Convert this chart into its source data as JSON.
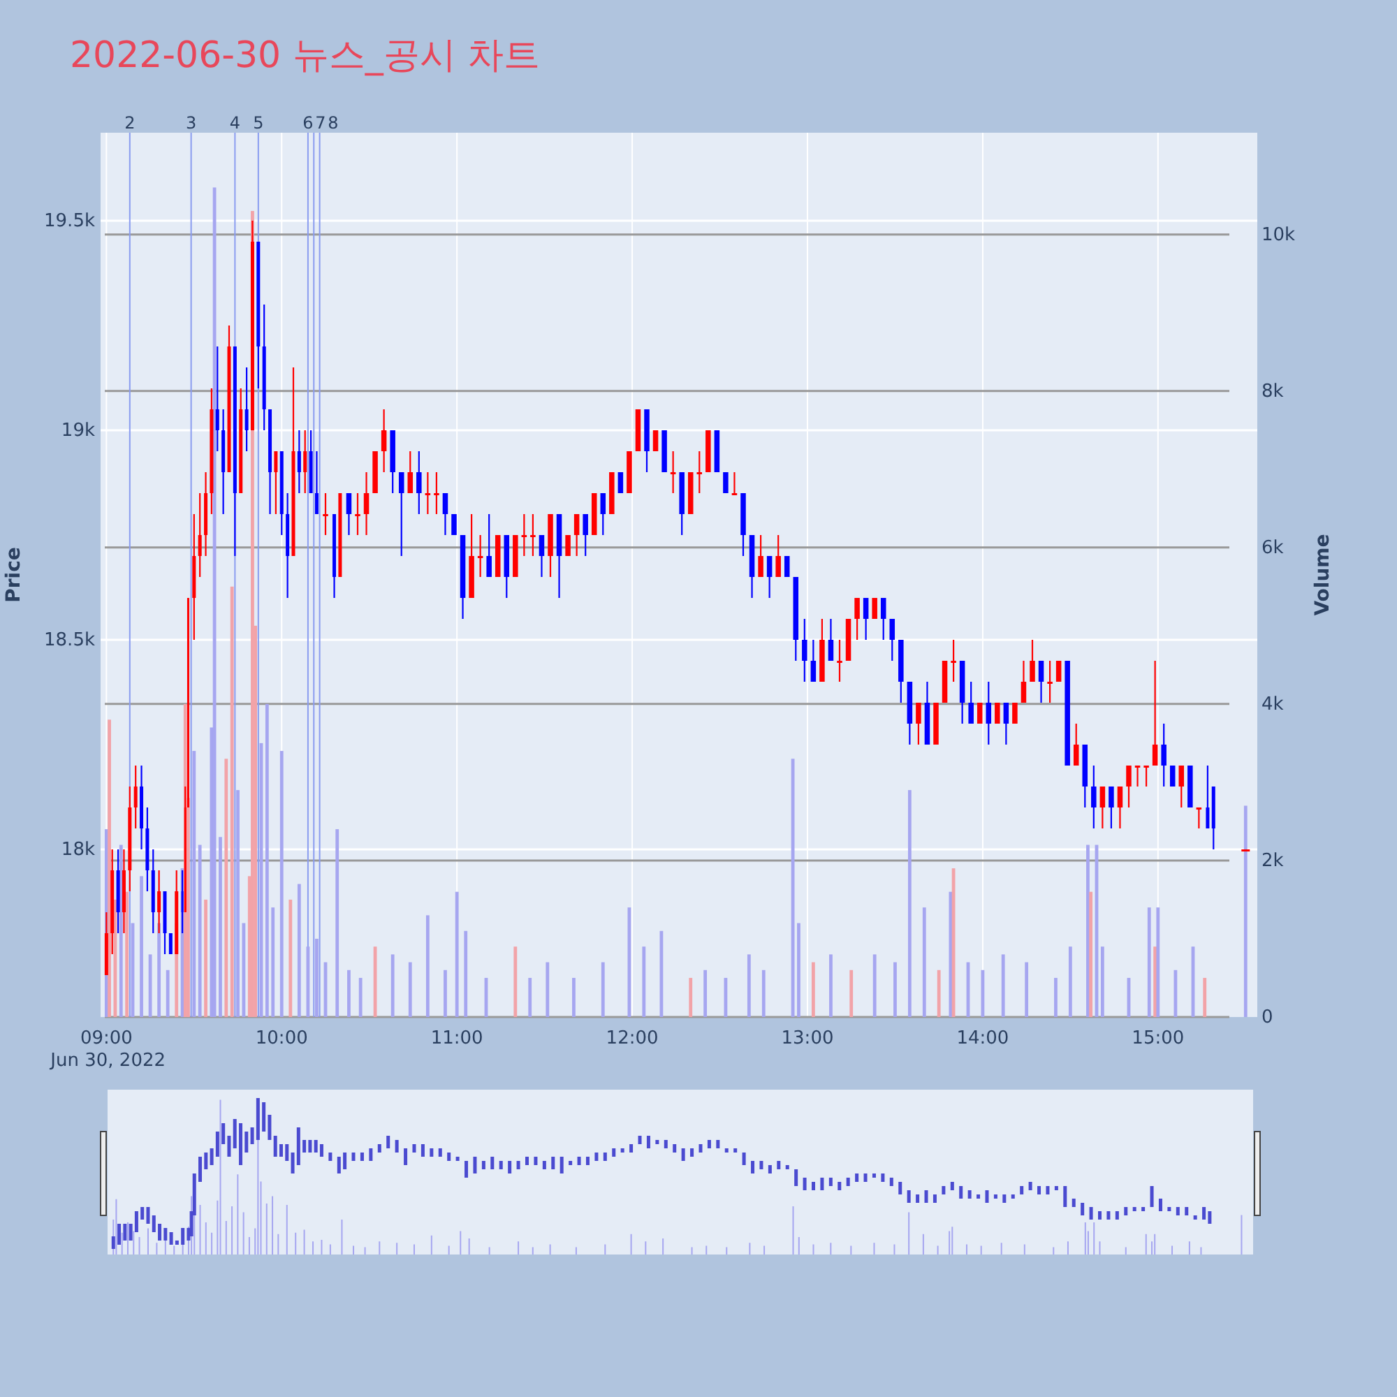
{
  "chart_data": {
    "type": "candlestick",
    "title": "2022-06-30 뉴스_공시 차트",
    "ylabel": "Price",
    "y2label": "Volume",
    "grid": true,
    "xlim": [
      "2022-06-30T08:58",
      "2022-06-30T15:34"
    ],
    "xticks": [
      {
        "value": "2022-06-30T09:00",
        "label": "09:00\nJun 30, 2022"
      },
      {
        "value": "2022-06-30T10:00",
        "label": "10:00"
      },
      {
        "value": "2022-06-30T11:00",
        "label": "11:00"
      },
      {
        "value": "2022-06-30T12:00",
        "label": "12:00"
      },
      {
        "value": "2022-06-30T13:00",
        "label": "13:00"
      },
      {
        "value": "2022-06-30T14:00",
        "label": "14:00"
      },
      {
        "value": "2022-06-30T15:00",
        "label": "15:00"
      }
    ],
    "ylim": [
      17600,
      19710
    ],
    "yticks": [
      {
        "value": 18000,
        "label": "18k"
      },
      {
        "value": 18500,
        "label": "18.5k"
      },
      {
        "value": 19000,
        "label": "19k"
      },
      {
        "value": 19500,
        "label": "19.5k"
      }
    ],
    "y2lim": [
      0,
      11300
    ],
    "y2ticks": [
      0,
      {
        "value": 2000,
        "label": "2k"
      },
      {
        "value": 4000,
        "label": "4k"
      },
      {
        "value": 6000,
        "label": "6k"
      },
      {
        "value": 8000,
        "label": "8k"
      },
      {
        "value": 10000,
        "label": "10k"
      }
    ],
    "x": [
      "2022-06-30T09:00",
      "2022-06-30T09:02",
      "2022-06-30T09:04",
      "2022-06-30T09:06",
      "2022-06-30T09:08",
      "2022-06-30T09:10",
      "2022-06-30T09:12",
      "2022-06-30T09:14",
      "2022-06-30T09:16",
      "2022-06-30T09:18",
      "2022-06-30T09:20",
      "2022-06-30T09:22",
      "2022-06-30T09:24",
      "2022-06-30T09:26",
      "2022-06-30T09:27",
      "2022-06-30T09:28",
      "2022-06-30T09:30",
      "2022-06-30T09:32",
      "2022-06-30T09:34",
      "2022-06-30T09:36",
      "2022-06-30T09:38",
      "2022-06-30T09:40",
      "2022-06-30T09:42",
      "2022-06-30T09:44",
      "2022-06-30T09:46",
      "2022-06-30T09:48",
      "2022-06-30T09:50",
      "2022-06-30T09:52",
      "2022-06-30T09:54",
      "2022-06-30T09:56",
      "2022-06-30T09:58",
      "2022-06-30T10:00",
      "2022-06-30T10:02",
      "2022-06-30T10:04",
      "2022-06-30T10:06",
      "2022-06-30T10:08",
      "2022-06-30T10:10",
      "2022-06-30T10:12",
      "2022-06-30T10:15",
      "2022-06-30T10:18",
      "2022-06-30T10:20",
      "2022-06-30T10:23",
      "2022-06-30T10:26",
      "2022-06-30T10:29",
      "2022-06-30T10:32",
      "2022-06-30T10:35",
      "2022-06-30T10:38",
      "2022-06-30T10:41",
      "2022-06-30T10:44",
      "2022-06-30T10:47",
      "2022-06-30T10:50",
      "2022-06-30T10:53",
      "2022-06-30T10:56",
      "2022-06-30T10:59",
      "2022-06-30T11:02",
      "2022-06-30T11:05",
      "2022-06-30T11:08",
      "2022-06-30T11:11",
      "2022-06-30T11:14",
      "2022-06-30T11:17",
      "2022-06-30T11:20",
      "2022-06-30T11:23",
      "2022-06-30T11:26",
      "2022-06-30T11:29",
      "2022-06-30T11:32",
      "2022-06-30T11:35",
      "2022-06-30T11:38",
      "2022-06-30T11:41",
      "2022-06-30T11:44",
      "2022-06-30T11:47",
      "2022-06-30T11:50",
      "2022-06-30T11:53",
      "2022-06-30T11:56",
      "2022-06-30T11:59",
      "2022-06-30T12:02",
      "2022-06-30T12:05",
      "2022-06-30T12:08",
      "2022-06-30T12:11",
      "2022-06-30T12:14",
      "2022-06-30T12:17",
      "2022-06-30T12:20",
      "2022-06-30T12:23",
      "2022-06-30T12:26",
      "2022-06-30T12:29",
      "2022-06-30T12:32",
      "2022-06-30T12:35",
      "2022-06-30T12:38",
      "2022-06-30T12:41",
      "2022-06-30T12:44",
      "2022-06-30T12:47",
      "2022-06-30T12:50",
      "2022-06-30T12:53",
      "2022-06-30T12:56",
      "2022-06-30T12:59",
      "2022-06-30T13:02",
      "2022-06-30T13:05",
      "2022-06-30T13:08",
      "2022-06-30T13:11",
      "2022-06-30T13:14",
      "2022-06-30T13:17",
      "2022-06-30T13:20",
      "2022-06-30T13:23",
      "2022-06-30T13:26",
      "2022-06-30T13:29",
      "2022-06-30T13:32",
      "2022-06-30T13:35",
      "2022-06-30T13:38",
      "2022-06-30T13:41",
      "2022-06-30T13:44",
      "2022-06-30T13:47",
      "2022-06-30T13:50",
      "2022-06-30T13:53",
      "2022-06-30T13:56",
      "2022-06-30T13:59",
      "2022-06-30T14:02",
      "2022-06-30T14:05",
      "2022-06-30T14:08",
      "2022-06-30T14:11",
      "2022-06-30T14:14",
      "2022-06-30T14:17",
      "2022-06-30T14:20",
      "2022-06-30T14:23",
      "2022-06-30T14:26",
      "2022-06-30T14:29",
      "2022-06-30T14:32",
      "2022-06-30T14:35",
      "2022-06-30T14:38",
      "2022-06-30T14:41",
      "2022-06-30T14:44",
      "2022-06-30T14:47",
      "2022-06-30T14:50",
      "2022-06-30T14:53",
      "2022-06-30T14:56",
      "2022-06-30T14:59",
      "2022-06-30T15:02",
      "2022-06-30T15:05",
      "2022-06-30T15:08",
      "2022-06-30T15:11",
      "2022-06-30T15:14",
      "2022-06-30T15:17",
      "2022-06-30T15:19",
      "2022-06-30T15:30"
    ],
    "ohlc": [
      [
        17700,
        17850,
        17700,
        17800
      ],
      [
        17800,
        18000,
        17750,
        17950
      ],
      [
        17950,
        18000,
        17800,
        17850
      ],
      [
        17850,
        18000,
        17800,
        17950
      ],
      [
        17950,
        18150,
        17900,
        18100
      ],
      [
        18100,
        18200,
        18050,
        18150
      ],
      [
        18150,
        18200,
        18000,
        18050
      ],
      [
        18050,
        18100,
        17900,
        17950
      ],
      [
        17950,
        18000,
        17800,
        17850
      ],
      [
        17850,
        17950,
        17800,
        17900
      ],
      [
        17900,
        17900,
        17750,
        17800
      ],
      [
        17800,
        17800,
        17750,
        17750
      ],
      [
        17750,
        17950,
        17750,
        17900
      ],
      [
        17900,
        17950,
        17800,
        17850
      ],
      [
        17850,
        18150,
        17850,
        18100
      ],
      [
        18100,
        18600,
        18100,
        18600
      ],
      [
        18600,
        18800,
        18500,
        18700
      ],
      [
        18700,
        18850,
        18650,
        18750
      ],
      [
        18750,
        18900,
        18700,
        18850
      ],
      [
        18850,
        19100,
        18800,
        19050
      ],
      [
        19050,
        19200,
        18950,
        19000
      ],
      [
        19000,
        19050,
        18800,
        18900
      ],
      [
        18900,
        19250,
        18900,
        19200
      ],
      [
        19200,
        19200,
        18700,
        18850
      ],
      [
        18850,
        19100,
        18850,
        19050
      ],
      [
        19050,
        19150,
        18950,
        19000
      ],
      [
        19000,
        19500,
        19000,
        19450
      ],
      [
        19450,
        19450,
        19100,
        19200
      ],
      [
        19200,
        19300,
        19000,
        19050
      ],
      [
        19050,
        19050,
        18800,
        18900
      ],
      [
        18900,
        18950,
        18800,
        18950
      ],
      [
        18950,
        18950,
        18750,
        18800
      ],
      [
        18800,
        18850,
        18600,
        18700
      ],
      [
        18700,
        19150,
        18700,
        18950
      ],
      [
        18950,
        19000,
        18850,
        18900
      ],
      [
        18900,
        19000,
        18850,
        18950
      ],
      [
        18950,
        19000,
        18850,
        18850
      ],
      [
        18850,
        18950,
        18800,
        18800
      ],
      [
        18800,
        18850,
        18750,
        18800
      ],
      [
        18800,
        18800,
        18600,
        18650
      ],
      [
        18650,
        18850,
        18650,
        18850
      ],
      [
        18850,
        18850,
        18750,
        18800
      ],
      [
        18800,
        18850,
        18750,
        18800
      ],
      [
        18800,
        18900,
        18750,
        18850
      ],
      [
        18850,
        18950,
        18850,
        18950
      ],
      [
        18950,
        19050,
        18900,
        19000
      ],
      [
        19000,
        19000,
        18850,
        18900
      ],
      [
        18900,
        18900,
        18700,
        18850
      ],
      [
        18850,
        18950,
        18850,
        18900
      ],
      [
        18900,
        18950,
        18800,
        18850
      ],
      [
        18850,
        18900,
        18800,
        18850
      ],
      [
        18850,
        18900,
        18800,
        18850
      ],
      [
        18850,
        18850,
        18750,
        18800
      ],
      [
        18800,
        18800,
        18750,
        18750
      ],
      [
        18750,
        18750,
        18550,
        18600
      ],
      [
        18600,
        18800,
        18600,
        18700
      ],
      [
        18700,
        18750,
        18650,
        18700
      ],
      [
        18700,
        18800,
        18650,
        18650
      ],
      [
        18650,
        18750,
        18650,
        18750
      ],
      [
        18750,
        18750,
        18600,
        18650
      ],
      [
        18650,
        18750,
        18650,
        18750
      ],
      [
        18750,
        18800,
        18700,
        18750
      ],
      [
        18750,
        18800,
        18700,
        18750
      ],
      [
        18750,
        18750,
        18650,
        18700
      ],
      [
        18700,
        18800,
        18650,
        18800
      ],
      [
        18800,
        18800,
        18600,
        18700
      ],
      [
        18700,
        18750,
        18700,
        18750
      ],
      [
        18750,
        18800,
        18700,
        18800
      ],
      [
        18800,
        18800,
        18700,
        18750
      ],
      [
        18750,
        18850,
        18750,
        18850
      ],
      [
        18850,
        18850,
        18750,
        18800
      ],
      [
        18800,
        18900,
        18800,
        18900
      ],
      [
        18900,
        18900,
        18850,
        18850
      ],
      [
        18850,
        18950,
        18850,
        18950
      ],
      [
        18950,
        19050,
        18950,
        19050
      ],
      [
        19050,
        19050,
        18900,
        18950
      ],
      [
        18950,
        19000,
        18950,
        19000
      ],
      [
        19000,
        19000,
        18900,
        18900
      ],
      [
        18900,
        18950,
        18850,
        18900
      ],
      [
        18900,
        18900,
        18750,
        18800
      ],
      [
        18800,
        18900,
        18800,
        18900
      ],
      [
        18900,
        18950,
        18850,
        18900
      ],
      [
        18900,
        19000,
        18900,
        19000
      ],
      [
        19000,
        19000,
        18900,
        18900
      ],
      [
        18900,
        18900,
        18850,
        18850
      ],
      [
        18850,
        18900,
        18850,
        18850
      ],
      [
        18850,
        18850,
        18700,
        18750
      ],
      [
        18750,
        18750,
        18600,
        18650
      ],
      [
        18650,
        18750,
        18650,
        18700
      ],
      [
        18700,
        18700,
        18600,
        18650
      ],
      [
        18650,
        18750,
        18650,
        18700
      ],
      [
        18700,
        18700,
        18650,
        18650
      ],
      [
        18650,
        18650,
        18450,
        18500
      ],
      [
        18500,
        18550,
        18400,
        18450
      ],
      [
        18450,
        18500,
        18400,
        18400
      ],
      [
        18400,
        18550,
        18400,
        18500
      ],
      [
        18500,
        18550,
        18450,
        18450
      ],
      [
        18450,
        18500,
        18400,
        18450
      ],
      [
        18450,
        18550,
        18450,
        18550
      ],
      [
        18550,
        18600,
        18500,
        18600
      ],
      [
        18600,
        18600,
        18500,
        18550
      ],
      [
        18550,
        18600,
        18550,
        18600
      ],
      [
        18600,
        18600,
        18500,
        18550
      ],
      [
        18550,
        18550,
        18450,
        18500
      ],
      [
        18500,
        18500,
        18350,
        18400
      ],
      [
        18400,
        18400,
        18250,
        18300
      ],
      [
        18300,
        18350,
        18250,
        18350
      ],
      [
        18350,
        18400,
        18250,
        18250
      ],
      [
        18250,
        18350,
        18250,
        18350
      ],
      [
        18350,
        18450,
        18350,
        18450
      ],
      [
        18450,
        18500,
        18400,
        18450
      ],
      [
        18450,
        18450,
        18300,
        18350
      ],
      [
        18350,
        18400,
        18300,
        18300
      ],
      [
        18300,
        18350,
        18300,
        18350
      ],
      [
        18350,
        18400,
        18250,
        18300
      ],
      [
        18300,
        18350,
        18300,
        18350
      ],
      [
        18350,
        18350,
        18250,
        18300
      ],
      [
        18300,
        18350,
        18300,
        18350
      ],
      [
        18350,
        18450,
        18350,
        18400
      ],
      [
        18400,
        18500,
        18400,
        18450
      ],
      [
        18450,
        18450,
        18350,
        18400
      ],
      [
        18400,
        18450,
        18350,
        18400
      ],
      [
        18400,
        18450,
        18400,
        18450
      ],
      [
        18450,
        18450,
        18200,
        18200
      ],
      [
        18200,
        18300,
        18200,
        18250
      ],
      [
        18250,
        18250,
        18100,
        18150
      ],
      [
        18150,
        18200,
        18050,
        18100
      ],
      [
        18100,
        18150,
        18050,
        18150
      ],
      [
        18150,
        18150,
        18050,
        18100
      ],
      [
        18100,
        18150,
        18050,
        18150
      ],
      [
        18150,
        18200,
        18100,
        18200
      ],
      [
        18200,
        18200,
        18150,
        18200
      ],
      [
        18200,
        18200,
        18150,
        18200
      ],
      [
        18200,
        18450,
        18200,
        18250
      ],
      [
        18250,
        18300,
        18150,
        18200
      ],
      [
        18200,
        18200,
        18150,
        18150
      ],
      [
        18150,
        18200,
        18100,
        18200
      ],
      [
        18200,
        18200,
        18100,
        18100
      ],
      [
        18100,
        18100,
        18050,
        18100
      ],
      [
        18100,
        18200,
        18050,
        18050
      ],
      [
        18150,
        18150,
        18000,
        18050
      ],
      [
        18000,
        18000,
        18000,
        18000
      ]
    ],
    "series": [
      {
        "type": "bar",
        "axis": "y2",
        "x": [
          "2022-06-30T09:00",
          "2022-06-30T09:01",
          "2022-06-30T09:03",
          "2022-06-30T09:05",
          "2022-06-30T09:07",
          "2022-06-30T09:09",
          "2022-06-30T09:12",
          "2022-06-30T09:15",
          "2022-06-30T09:18",
          "2022-06-30T09:21",
          "2022-06-30T09:24",
          "2022-06-30T09:26",
          "2022-06-30T09:27",
          "2022-06-30T09:28",
          "2022-06-30T09:30",
          "2022-06-30T09:32",
          "2022-06-30T09:34",
          "2022-06-30T09:36",
          "2022-06-30T09:37",
          "2022-06-30T09:39",
          "2022-06-30T09:41",
          "2022-06-30T09:43",
          "2022-06-30T09:45",
          "2022-06-30T09:47",
          "2022-06-30T09:49",
          "2022-06-30T09:50",
          "2022-06-30T09:51",
          "2022-06-30T09:53",
          "2022-06-30T09:55",
          "2022-06-30T09:57",
          "2022-06-30T10:00",
          "2022-06-30T10:03",
          "2022-06-30T10:06",
          "2022-06-30T10:09",
          "2022-06-30T10:12",
          "2022-06-30T10:15",
          "2022-06-30T10:19",
          "2022-06-30T10:23",
          "2022-06-30T10:27",
          "2022-06-30T10:32",
          "2022-06-30T10:38",
          "2022-06-30T10:44",
          "2022-06-30T10:50",
          "2022-06-30T10:56",
          "2022-06-30T11:00",
          "2022-06-30T11:03",
          "2022-06-30T11:10",
          "2022-06-30T11:20",
          "2022-06-30T11:25",
          "2022-06-30T11:31",
          "2022-06-30T11:40",
          "2022-06-30T11:50",
          "2022-06-30T11:59",
          "2022-06-30T12:04",
          "2022-06-30T12:10",
          "2022-06-30T12:20",
          "2022-06-30T12:25",
          "2022-06-30T12:32",
          "2022-06-30T12:40",
          "2022-06-30T12:45",
          "2022-06-30T12:55",
          "2022-06-30T12:57",
          "2022-06-30T13:02",
          "2022-06-30T13:08",
          "2022-06-30T13:15",
          "2022-06-30T13:23",
          "2022-06-30T13:30",
          "2022-06-30T13:35",
          "2022-06-30T13:40",
          "2022-06-30T13:45",
          "2022-06-30T13:49",
          "2022-06-30T13:50",
          "2022-06-30T13:55",
          "2022-06-30T14:00",
          "2022-06-30T14:07",
          "2022-06-30T14:15",
          "2022-06-30T14:25",
          "2022-06-30T14:30",
          "2022-06-30T14:36",
          "2022-06-30T14:37",
          "2022-06-30T14:39",
          "2022-06-30T14:41",
          "2022-06-30T14:50",
          "2022-06-30T14:57",
          "2022-06-30T14:59",
          "2022-06-30T15:00",
          "2022-06-30T15:06",
          "2022-06-30T15:12",
          "2022-06-30T15:16",
          "2022-06-30T15:30"
        ],
        "values": [
          2400,
          3800,
          1500,
          2200,
          1600,
          1200,
          1800,
          800,
          1200,
          600,
          1200,
          1900,
          4000,
          2800,
          3400,
          2200,
          1500,
          3700,
          10600,
          2300,
          3300,
          5500,
          2900,
          1200,
          1800,
          10300,
          5000,
          3500,
          4000,
          1400,
          3400,
          1500,
          1700,
          900,
          1000,
          700,
          2400,
          600,
          500,
          900,
          800,
          700,
          1300,
          600,
          1600,
          1100,
          500,
          900,
          500,
          700,
          500,
          700,
          1400,
          900,
          1100,
          500,
          600,
          500,
          800,
          600,
          3300,
          1200,
          700,
          800,
          600,
          800,
          700,
          2900,
          1400,
          600,
          1600,
          1900,
          700,
          600,
          800,
          700,
          500,
          900,
          2200,
          1600,
          2200,
          900,
          500,
          1400,
          900,
          1400,
          600,
          900,
          500,
          2700
        ],
        "colors": [
          "#a6a6f0",
          "#f2a3a8",
          "#f2a3a8",
          "#a6a6f0",
          "#f2a3a8",
          "#a6a6f0",
          "#a6a6f0",
          "#a6a6f0",
          "#a6a6f0",
          "#a6a6f0",
          "#f2a3a8",
          "#a6a6f0",
          "#f2a3a8",
          "#f2a3a8",
          "#a6a6f0",
          "#a6a6f0",
          "#f2a3a8",
          "#a6a6f0",
          "#a6a6f0",
          "#a6a6f0",
          "#f2a3a8",
          "#f2a3a8",
          "#a6a6f0",
          "#a6a6f0",
          "#f2a3a8",
          "#f2a3a8",
          "#f2a3a8",
          "#a6a6f0",
          "#a6a6f0",
          "#a6a6f0",
          "#a6a6f0",
          "#f2a3a8",
          "#a6a6f0",
          "#a6a6f0",
          "#a6a6f0",
          "#a6a6f0",
          "#a6a6f0",
          "#a6a6f0",
          "#a6a6f0",
          "#f2a3a8",
          "#a6a6f0",
          "#a6a6f0",
          "#a6a6f0",
          "#a6a6f0",
          "#a6a6f0",
          "#a6a6f0",
          "#a6a6f0",
          "#f2a3a8",
          "#a6a6f0",
          "#a6a6f0",
          "#a6a6f0",
          "#a6a6f0",
          "#a6a6f0",
          "#a6a6f0",
          "#a6a6f0",
          "#f2a3a8",
          "#a6a6f0",
          "#a6a6f0",
          "#a6a6f0",
          "#a6a6f0",
          "#a6a6f0",
          "#a6a6f0",
          "#f2a3a8",
          "#a6a6f0",
          "#f2a3a8",
          "#a6a6f0",
          "#a6a6f0",
          "#a6a6f0",
          "#a6a6f0",
          "#f2a3a8",
          "#a6a6f0",
          "#f2a3a8",
          "#a6a6f0",
          "#a6a6f0",
          "#a6a6f0",
          "#a6a6f0",
          "#a6a6f0",
          "#a6a6f0",
          "#a6a6f0",
          "#f2a3a8",
          "#a6a6f0",
          "#a6a6f0",
          "#a6a6f0",
          "#a6a6f0",
          "#f2a3a8",
          "#a6a6f0",
          "#a6a6f0",
          "#a6a6f0",
          "#f2a3a8",
          "#a6a6f0"
        ]
      }
    ],
    "ref_lines": [
      {
        "axis": "x",
        "value": "2022-06-30T09:08",
        "label": "2",
        "color": "#8a9cf0"
      },
      {
        "axis": "x",
        "value": "2022-06-30T09:29",
        "label": "3",
        "color": "#8a9cf0"
      },
      {
        "axis": "x",
        "value": "2022-06-30T09:44",
        "label": "4",
        "color": "#8a9cf0"
      },
      {
        "axis": "x",
        "value": "2022-06-30T09:52",
        "label": "5",
        "color": "#8a9cf0"
      },
      {
        "axis": "x",
        "value": "2022-06-30T10:09",
        "label": "6",
        "color": "#8a9cf0"
      },
      {
        "axis": "x",
        "value": "2022-06-30T10:11",
        "label": "7",
        "color": "#8a9cf0"
      },
      {
        "axis": "x",
        "value": "2022-06-30T10:13",
        "label": "8",
        "color": "#8a9cf0"
      }
    ]
  }
}
